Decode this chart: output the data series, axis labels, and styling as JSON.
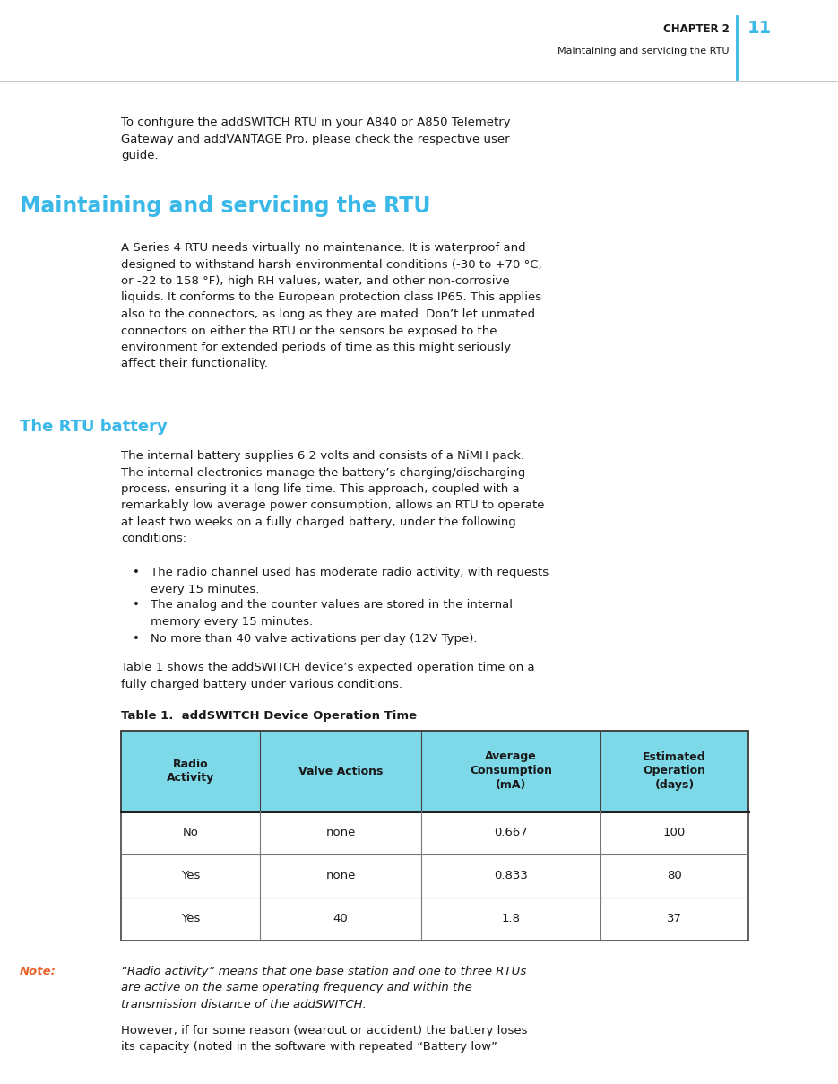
{
  "page_width": 9.35,
  "page_height": 12.09,
  "dpi": 100,
  "bg_color": "#ffffff",
  "text_color": "#1a1a1a",
  "cyan_color": "#3ab8e8",
  "note_color": "#e8632a",
  "table_header_bg": "#7dd8e8",
  "header_line_color": "#3ab8e8",
  "chapter_text": "CHAPTER 2",
  "page_number": "11",
  "header_sub": "Maintaining and servicing the RTU",
  "intro_text": "To configure the addSWITCH RTU in your A840 or A850 Telemetry\nGateway and addVANTAGE Pro, please check the respective user\nguide.",
  "section_title": "Maintaining and servicing the RTU",
  "body_text1": "A Series 4 RTU needs virtually no maintenance. It is waterproof and\ndesigned to withstand harsh environmental conditions (-30 to +70 °C,\nor -22 to 158 °F), high RH values, water, and other non-corrosive\nliquids. It conforms to the European protection class IP65. This applies\nalso to the connectors, as long as they are mated. Don’t let unmated\nconnectors on either the RTU or the sensors be exposed to the\nenvironment for extended periods of time as this might seriously\naffect their functionality.",
  "sub_title": "The RTU battery",
  "battery_text": "The internal battery supplies 6.2 volts and consists of a NiMH pack.\nThe internal electronics manage the battery’s charging/discharging\nprocess, ensuring it a long life time. This approach, coupled with a\nremarkably low average power consumption, allows an RTU to operate\nat least two weeks on a fully charged battery, under the following\nconditions:",
  "bullet1": "The radio channel used has moderate radio activity, with requests\nevery 15 minutes.",
  "bullet2": "The analog and the counter values are stored in the internal\nmemory every 15 minutes.",
  "bullet3": "No more than 40 valve activations per day (12V Type).",
  "table_intro": "Table 1 shows the addSWITCH device’s expected operation time on a\nfully charged battery under various conditions.",
  "table_title": "Table 1.  addSWITCH Device Operation Time",
  "table_headers": [
    "Radio\nActivity",
    "Valve Actions",
    "Average\nConsumption\n(mA)",
    "Estimated\nOperation\n(days)"
  ],
  "table_rows": [
    [
      "No",
      "none",
      "0.667",
      "100"
    ],
    [
      "Yes",
      "none",
      "0.833",
      "80"
    ],
    [
      "Yes",
      "40",
      "1.8",
      "37"
    ]
  ],
  "note_label": "Note:",
  "note_italic_text": "“Radio activity” means that one base station and one to three RTUs\nare active on the same operating frequency and within the\ntransmission distance of the addSWITCH.",
  "note_text2": "However, if for some reason (wearout or accident) the battery loses\nits capacity (noted in the software with repeated “Battery low”"
}
